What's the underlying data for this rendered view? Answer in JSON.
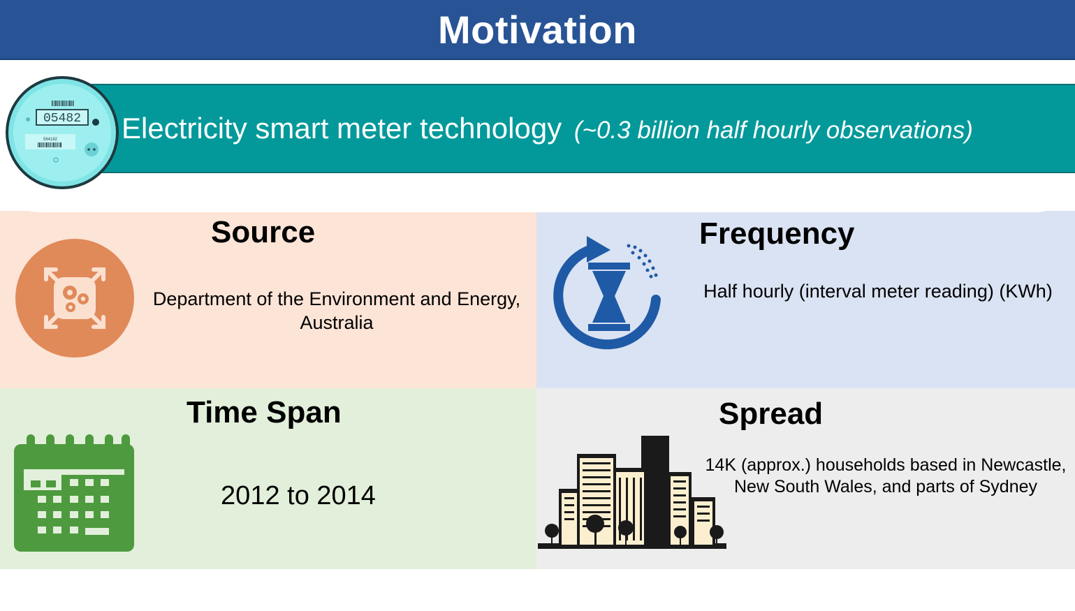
{
  "header": {
    "title": "Motivation"
  },
  "banner": {
    "main_text": "Electricity smart meter technology",
    "italic_text": "(~0.3 billion half hourly observations)",
    "meter_reading": "05482",
    "meter_small_number": "564182"
  },
  "source": {
    "title": "Source",
    "text_line1": "Department of the Environment and Energy,",
    "text_line2": "Australia"
  },
  "frequency": {
    "title": "Frequency",
    "text": "Half hourly (interval meter reading) (KWh)"
  },
  "time_span": {
    "title": "Time Span",
    "text": "2012 to 2014"
  },
  "spread": {
    "title": "Spread",
    "text_line1": "14K (approx.) households based in Newcastle,",
    "text_line2": "New South Wales, and parts of Sydney"
  },
  "colors": {
    "header_bg": "#285496",
    "banner_bg": "#03999a",
    "source_bg": "#fce4d6",
    "frequency_bg": "#dae3f3",
    "time_bg": "#e2efda",
    "spread_bg": "#ededed",
    "source_icon": "#e08a5a",
    "frequency_icon": "#1f5aa6",
    "calendar_icon": "#4e9a3f"
  },
  "icons": {
    "meter": "smart-meter-icon",
    "source": "gears-expand-icon",
    "frequency": "hourglass-cycle-icon",
    "time": "calendar-icon",
    "spread": "city-buildings-icon"
  }
}
